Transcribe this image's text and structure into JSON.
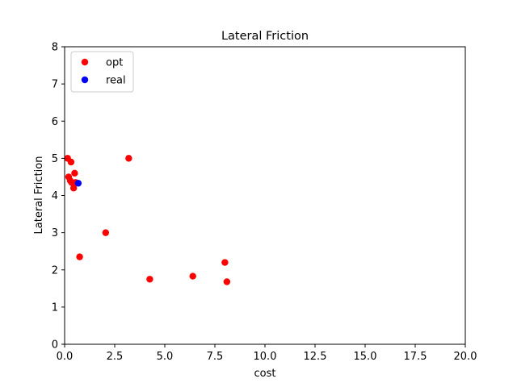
{
  "chart_data": {
    "type": "scatter",
    "title": "Lateral Friction",
    "xlabel": "cost",
    "ylabel": "Lateral Friction",
    "xlim": [
      0,
      20
    ],
    "ylim": [
      0,
      8
    ],
    "xticks": [
      "0.0",
      "2.5",
      "5.0",
      "7.5",
      "10.0",
      "12.5",
      "15.0",
      "17.5",
      "20.0"
    ],
    "yticks": [
      "0",
      "1",
      "2",
      "3",
      "4",
      "5",
      "6",
      "7",
      "8"
    ],
    "grid": false,
    "legend_position": "top-left",
    "series": [
      {
        "name": "opt",
        "color": "#ff0000",
        "points": [
          {
            "x": 0.15,
            "y": 5.0
          },
          {
            "x": 0.32,
            "y": 4.9
          },
          {
            "x": 0.2,
            "y": 4.5
          },
          {
            "x": 0.28,
            "y": 4.4
          },
          {
            "x": 0.35,
            "y": 4.35
          },
          {
            "x": 0.5,
            "y": 4.6
          },
          {
            "x": 0.55,
            "y": 4.35
          },
          {
            "x": 0.45,
            "y": 4.2
          },
          {
            "x": 0.75,
            "y": 2.35
          },
          {
            "x": 2.05,
            "y": 3.0
          },
          {
            "x": 3.2,
            "y": 5.0
          },
          {
            "x": 4.25,
            "y": 1.75
          },
          {
            "x": 6.4,
            "y": 1.83
          },
          {
            "x": 8.0,
            "y": 2.2
          },
          {
            "x": 8.1,
            "y": 1.68
          }
        ]
      },
      {
        "name": "real",
        "color": "#0000ff",
        "points": [
          {
            "x": 0.68,
            "y": 4.33
          }
        ]
      }
    ]
  }
}
